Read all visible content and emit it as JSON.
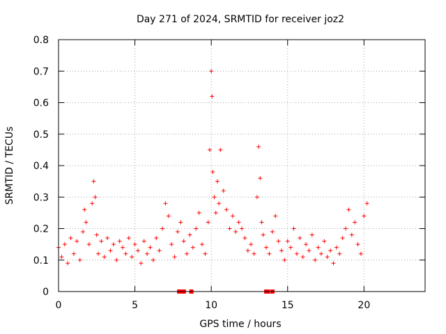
{
  "chart_data": {
    "type": "scatter",
    "title": "Day 271 of 2024, SRMTID for receiver joz2",
    "xlabel": "GPS time / hours",
    "ylabel": "SRMTID / TECUs",
    "xlim": [
      0,
      24
    ],
    "ylim": [
      0,
      0.8
    ],
    "xticks": [
      0,
      5,
      10,
      15,
      20
    ],
    "xtick_labels": [
      "0",
      "5",
      "10",
      "15",
      "20"
    ],
    "yticks": [
      0,
      0.1,
      0.2,
      0.3,
      0.4,
      0.5,
      0.6,
      0.7,
      0.8
    ],
    "ytick_labels": [
      "0",
      "0.1",
      "0.2",
      "0.3",
      "0.4",
      "0.5",
      "0.6",
      "0.7",
      "0.8"
    ],
    "grid": true,
    "marker": "plus",
    "color": "#ff0000",
    "series": [
      {
        "name": "SRMTID",
        "x": [
          0.0,
          0.2,
          0.4,
          0.6,
          0.8,
          1.0,
          1.2,
          1.4,
          1.6,
          1.7,
          1.8,
          2.0,
          2.2,
          2.3,
          2.4,
          2.5,
          2.6,
          2.8,
          3.0,
          3.2,
          3.4,
          3.6,
          3.8,
          4.0,
          4.2,
          4.4,
          4.6,
          4.8,
          5.0,
          5.2,
          5.4,
          5.6,
          5.8,
          6.0,
          6.2,
          6.4,
          6.6,
          6.8,
          7.0,
          7.2,
          7.4,
          7.6,
          7.8,
          8.0,
          8.2,
          8.4,
          8.6,
          8.8,
          9.0,
          9.2,
          9.4,
          9.6,
          9.8,
          9.9,
          10.0,
          10.05,
          10.1,
          10.2,
          10.3,
          10.4,
          10.5,
          10.6,
          10.8,
          11.0,
          11.2,
          11.4,
          11.6,
          11.8,
          12.0,
          12.2,
          12.4,
          12.6,
          12.8,
          13.0,
          13.1,
          13.2,
          13.3,
          13.4,
          13.6,
          13.8,
          14.0,
          14.2,
          14.4,
          14.6,
          14.8,
          15.0,
          15.2,
          15.4,
          15.6,
          15.8,
          16.0,
          16.2,
          16.4,
          16.6,
          16.8,
          17.0,
          17.2,
          17.4,
          17.6,
          17.8,
          18.0,
          18.2,
          18.4,
          18.6,
          18.8,
          19.0,
          19.2,
          19.4,
          19.6,
          19.8,
          20.0,
          20.2
        ],
        "y": [
          0.14,
          0.11,
          0.15,
          0.09,
          0.17,
          0.12,
          0.16,
          0.1,
          0.19,
          0.26,
          0.22,
          0.15,
          0.28,
          0.35,
          0.3,
          0.18,
          0.12,
          0.16,
          0.11,
          0.17,
          0.13,
          0.15,
          0.1,
          0.16,
          0.14,
          0.12,
          0.17,
          0.11,
          0.15,
          0.13,
          0.09,
          0.16,
          0.12,
          0.14,
          0.1,
          0.17,
          0.13,
          0.2,
          0.28,
          0.24,
          0.15,
          0.11,
          0.19,
          0.22,
          0.16,
          0.12,
          0.18,
          0.14,
          0.2,
          0.25,
          0.15,
          0.12,
          0.22,
          0.45,
          0.7,
          0.62,
          0.38,
          0.3,
          0.25,
          0.35,
          0.28,
          0.45,
          0.32,
          0.26,
          0.2,
          0.24,
          0.19,
          0.22,
          0.2,
          0.17,
          0.13,
          0.15,
          0.12,
          0.3,
          0.46,
          0.36,
          0.22,
          0.18,
          0.14,
          0.12,
          0.19,
          0.24,
          0.16,
          0.13,
          0.1,
          0.16,
          0.14,
          0.2,
          0.12,
          0.17,
          0.11,
          0.15,
          0.13,
          0.18,
          0.1,
          0.14,
          0.12,
          0.16,
          0.11,
          0.13,
          0.09,
          0.14,
          0.12,
          0.17,
          0.2,
          0.26,
          0.18,
          0.22,
          0.15,
          0.12,
          0.24,
          0.28
        ]
      }
    ],
    "zero_markers": {
      "x": [
        7.9,
        8.1,
        8.2,
        8.7,
        13.6,
        13.7,
        14.0
      ]
    }
  }
}
